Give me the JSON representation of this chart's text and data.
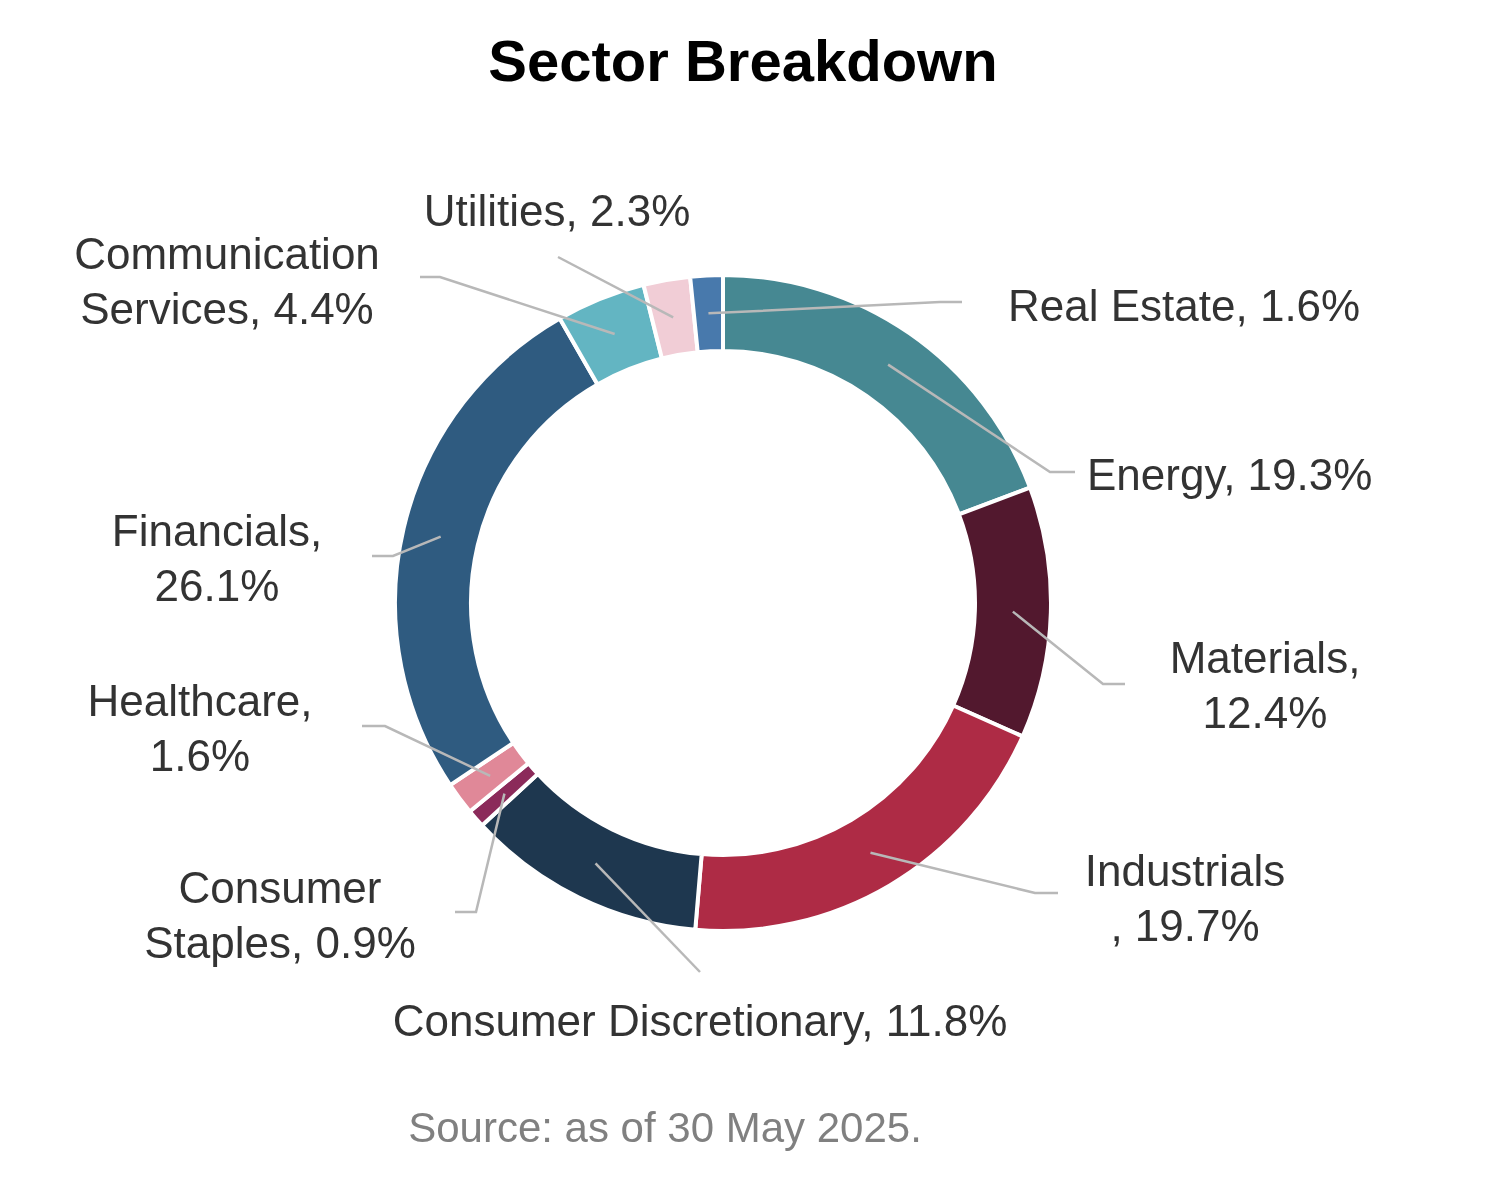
{
  "chart_data": {
    "type": "donut",
    "title": "Sector Breakdown",
    "categories": [
      "Energy",
      "Materials",
      "Industrials",
      "Consumer Discretionary",
      "Consumer Staples",
      "Healthcare",
      "Financials",
      "Communication Services",
      "Utilities",
      "Real Estate"
    ],
    "values": [
      19.3,
      12.4,
      19.7,
      11.8,
      0.9,
      1.6,
      26.1,
      4.4,
      2.3,
      1.6
    ],
    "value_labels": [
      ", 19.3%",
      ", 12.4%",
      ", 19.7%",
      ", 11.8%",
      ", 0.9%",
      ", 1.6%",
      ", 26.1%",
      ", 4.4%",
      ", 2.3%",
      ", 1.6%"
    ],
    "colors": [
      "#468892",
      "#52182e",
      "#ae2b45",
      "#1e374f",
      "#8b2a5a",
      "#e08898",
      "#2f5b80",
      "#63b5c2",
      "#f1cdd6",
      "#4879ac"
    ],
    "annotations": [
      "Source: as of 30 May 2025."
    ]
  }
}
